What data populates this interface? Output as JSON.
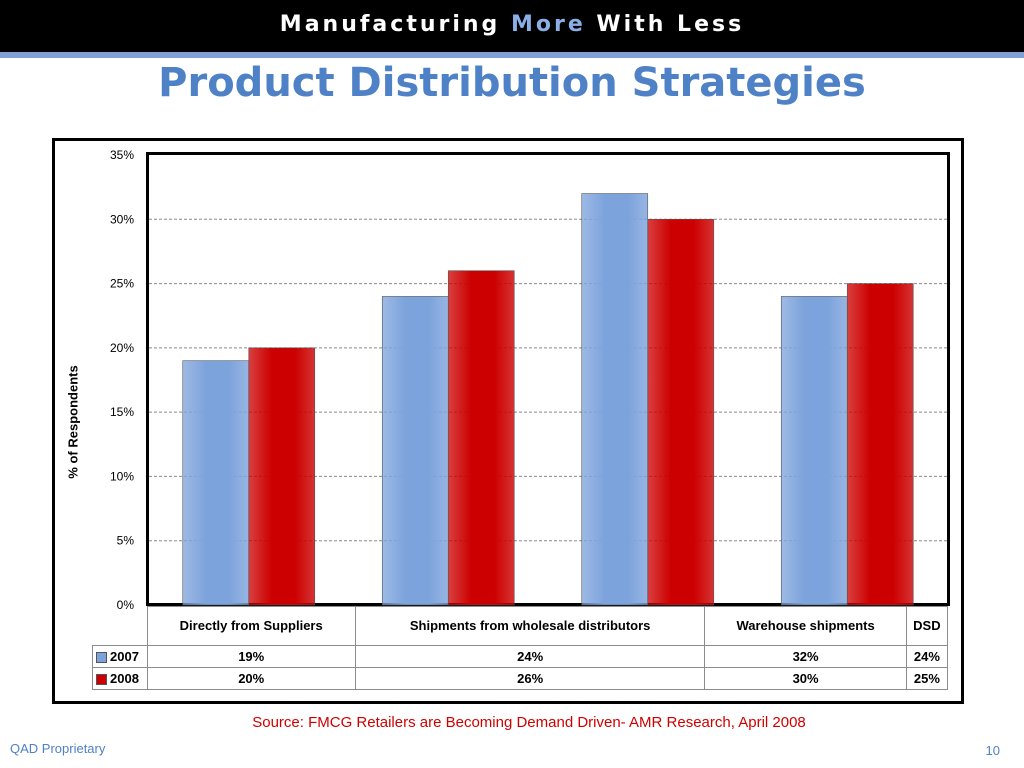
{
  "header": {
    "banner_part1": "Manufacturing ",
    "banner_accent": "More",
    "banner_part2": " With Less",
    "title": "Product Distribution Strategies"
  },
  "chart_data": {
    "type": "bar",
    "categories": [
      "Directly from Suppliers",
      "Shipments from wholesale distributors",
      "Warehouse shipments",
      "DSD"
    ],
    "series": [
      {
        "name": "2007",
        "values": [
          19,
          24,
          32,
          24
        ],
        "color": "#7da3dc",
        "labels": [
          "19%",
          "24%",
          "32%",
          "24%"
        ]
      },
      {
        "name": "2008",
        "values": [
          20,
          26,
          30,
          25
        ],
        "color": "#cc0000",
        "labels": [
          "20%",
          "26%",
          "30%",
          "25%"
        ]
      }
    ],
    "ylabel": "% of Respondents",
    "ylim": [
      0,
      35
    ],
    "yticks": [
      "0%",
      "5%",
      "10%",
      "15%",
      "20%",
      "25%",
      "30%",
      "35%"
    ],
    "grid": true,
    "legend": "data-table"
  },
  "table": {
    "headers": [
      "Directly from Suppliers",
      "Shipments from wholesale distributors",
      "Warehouse shipments",
      "DSD"
    ]
  },
  "source": "Source: FMCG Retailers are Becoming Demand Driven- AMR Research, April 2008",
  "footer": {
    "left": "QAD Proprietary",
    "page": "10"
  }
}
